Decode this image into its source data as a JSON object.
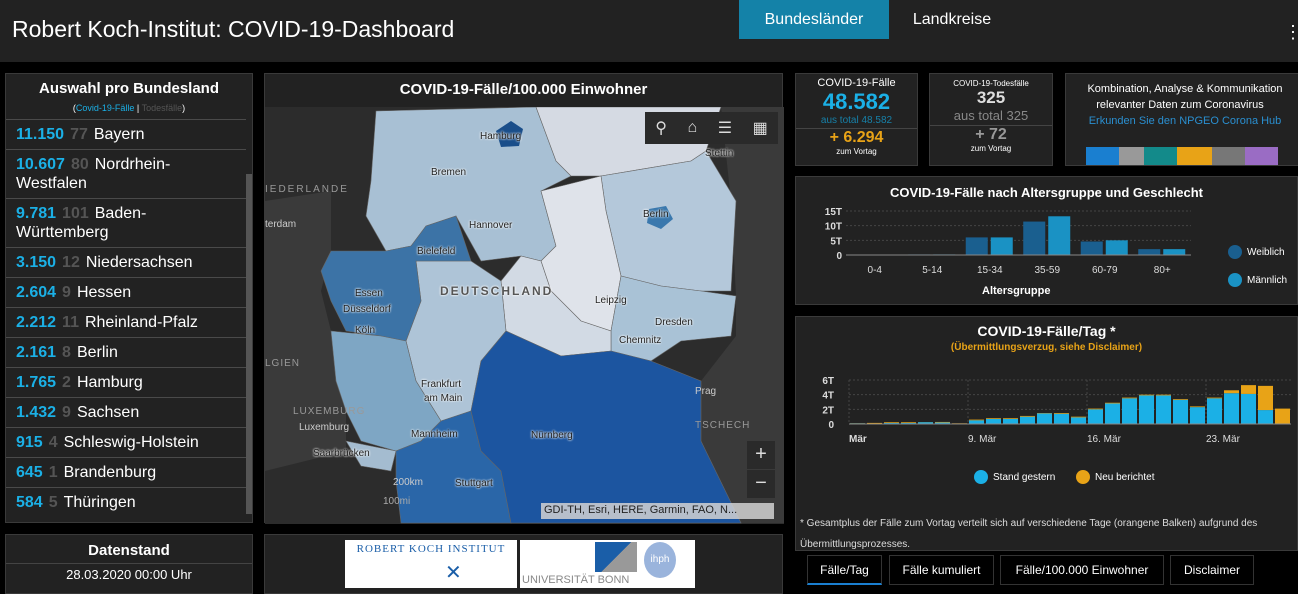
{
  "header": {
    "title": "Robert Koch-Institut: COVID-19-Dashboard",
    "tabs": [
      {
        "label": "Bundesländer",
        "active": true
      },
      {
        "label": "Landkreise",
        "active": false
      }
    ],
    "accent": "#1482a8"
  },
  "states_panel": {
    "title": "Auswahl pro Bundesland",
    "subtitle_open": "(",
    "subtitle_cases": "Covid-19-Fälle",
    "subtitle_sep": " | ",
    "subtitle_deaths": "Todesfälle",
    "subtitle_close": ")",
    "rows": [
      {
        "cases": "11.150",
        "deaths": "77",
        "name": "Bayern"
      },
      {
        "cases": "10.607",
        "deaths": "80",
        "name": "Nordrhein-Westfalen"
      },
      {
        "cases": "9.781",
        "deaths": "101",
        "name": "Baden-Württemberg"
      },
      {
        "cases": "3.150",
        "deaths": "12",
        "name": "Niedersachsen"
      },
      {
        "cases": "2.604",
        "deaths": "9",
        "name": "Hessen"
      },
      {
        "cases": "2.212",
        "deaths": "11",
        "name": "Rheinland-Pfalz"
      },
      {
        "cases": "2.161",
        "deaths": "8",
        "name": "Berlin"
      },
      {
        "cases": "1.765",
        "deaths": "2",
        "name": "Hamburg"
      },
      {
        "cases": "1.432",
        "deaths": "9",
        "name": "Sachsen"
      },
      {
        "cases": "915",
        "deaths": "4",
        "name": "Schleswig-Holstein"
      },
      {
        "cases": "645",
        "deaths": "1",
        "name": "Brandenburg"
      },
      {
        "cases": "584",
        "deaths": "5",
        "name": "Thüringen"
      }
    ]
  },
  "datenstand": {
    "title": "Datenstand",
    "value": "28.03.2020 00:00 Uhr"
  },
  "map": {
    "title": "COVID-19-Fälle/100.000 Einwohner",
    "tools": [
      "search-icon",
      "home-icon",
      "legend-icon",
      "basemap-icon"
    ],
    "zoom_in": "+",
    "zoom_out": "−",
    "scale_km": "200km",
    "scale_mi": "100mi",
    "attribution": "GDI-TH, Esri, HERE, Garmin, FAO, N...",
    "labels": {
      "hamburg": "Hamburg",
      "bremen": "Bremen",
      "hannover": "Hannover",
      "bielefeld": "Bielefeld",
      "berlin": "Berlin",
      "essen": "Essen",
      "duesseldorf": "Düsseldorf",
      "koeln": "Köln",
      "deutschland": "DEUTSCHLAND",
      "leipzig": "Leipzig",
      "dresden": "Dresden",
      "chemnitz": "Chemnitz",
      "frankfurt1": "Frankfurt",
      "frankfurt2": "am Main",
      "prag": "Prag",
      "mannheim": "Mannheim",
      "nuernberg": "Nürnberg",
      "saarbruecken": "Saarbrücken",
      "stuttgart": "Stuttgart",
      "luxemburg_country": "LUXEMBURG",
      "luxemburg": "Luxemburg",
      "niederlande": "IEDERLANDE",
      "amsterdam": "terdam",
      "belgien": "LGIEN",
      "tschechien": "TSCHECH",
      "stettin": "Stettin"
    }
  },
  "logos": {
    "rki": "ROBERT KOCH INSTITUT",
    "bonn": "UNIVERSITÄT BONN",
    "ihph": "ihph"
  },
  "cases_box": {
    "title": "COVID-19-Fälle",
    "value": "48.582",
    "total": "aus total 48.582",
    "delta": "+ 6.294",
    "delta_label": "zum Vortag",
    "color": "#1bb0e6",
    "delta_color": "#e8a317"
  },
  "deaths_box": {
    "title": "COVID-19-Todesfälle",
    "value": "325",
    "total": "aus total 325",
    "delta": "+ 72",
    "delta_label": "zum Vortag"
  },
  "info_box": {
    "line1": "Kombination, Analyse & Kommunikation",
    "line2": "relevanter Daten zum Coronavirus",
    "link": "Erkunden Sie den NPGEO Corona Hub"
  },
  "chart_data": [
    {
      "type": "bar",
      "title": "COVID-19-Fälle nach Altersgruppe und Geschlecht",
      "xlabel": "Altersgruppe",
      "ylabel": "",
      "categories": [
        "0-4",
        "5-14",
        "15-34",
        "35-59",
        "60-79",
        "80+"
      ],
      "yticks": [
        "0",
        "5T",
        "10T",
        "15T"
      ],
      "ylim": [
        0,
        15000
      ],
      "legend": "right",
      "series": [
        {
          "name": "Weiblich",
          "color": "#1a5f8f",
          "values": [
            100,
            200,
            6000,
            11400,
            4600,
            2000
          ]
        },
        {
          "name": "Männlich",
          "color": "#1a92c4",
          "values": [
            100,
            200,
            6000,
            13200,
            5000,
            2000
          ]
        }
      ]
    },
    {
      "type": "bar",
      "stacked": true,
      "title": "COVID-19-Fälle/Tag *",
      "subtitle": "(Übermittlungsverzug, siehe Disclaimer)",
      "xticks": [
        "Mär",
        "9. Mär",
        "16. Mär",
        "23. Mär"
      ],
      "yticks": [
        "0",
        "2T",
        "4T",
        "6T"
      ],
      "ylim": [
        0,
        6000
      ],
      "legend": "bottom",
      "x": [
        "2.3",
        "3.3",
        "4.3",
        "5.3",
        "6.3",
        "7.3",
        "8.3",
        "9.3",
        "10.3",
        "11.3",
        "12.3",
        "13.3",
        "14.3",
        "15.3",
        "16.3",
        "17.3",
        "18.3",
        "19.3",
        "20.3",
        "21.3",
        "22.3",
        "23.3",
        "24.3",
        "25.3",
        "26.3",
        "27.3"
      ],
      "series": [
        {
          "name": "Stand gestern",
          "color": "#1bb0e6",
          "values": [
            100,
            0,
            150,
            150,
            250,
            200,
            50,
            500,
            700,
            700,
            1000,
            1450,
            1400,
            900,
            2000,
            2800,
            3500,
            3900,
            3900,
            3300,
            2300,
            3500,
            4200,
            4100,
            1900,
            0
          ]
        },
        {
          "name": "Neu berichtet",
          "color": "#e8a317",
          "values": [
            20,
            150,
            100,
            100,
            20,
            80,
            50,
            100,
            100,
            100,
            100,
            50,
            100,
            100,
            100,
            100,
            100,
            100,
            100,
            100,
            100,
            100,
            400,
            1200,
            3300,
            2100
          ]
        }
      ]
    }
  ],
  "footnote": "* Gesamtplus der Fälle zum Vortag verteilt sich auf verschiedene Tage (orangene Balken) aufgrund des Übermittlungsprozesses.",
  "bottom_tabs": [
    {
      "label": "Fälle/Tag",
      "active": true
    },
    {
      "label": "Fälle kumuliert"
    },
    {
      "label": "Fälle/100.000 Einwohner"
    },
    {
      "label": "Disclaimer"
    }
  ]
}
